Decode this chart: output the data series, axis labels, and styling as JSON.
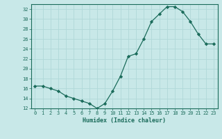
{
  "x": [
    0,
    1,
    2,
    3,
    4,
    5,
    6,
    7,
    8,
    9,
    10,
    11,
    12,
    13,
    14,
    15,
    16,
    17,
    18,
    19,
    20,
    21,
    22,
    23
  ],
  "y": [
    16.5,
    16.5,
    16.0,
    15.5,
    14.5,
    14.0,
    13.5,
    13.0,
    12.0,
    13.0,
    15.5,
    18.5,
    22.5,
    23.0,
    26.0,
    29.5,
    31.0,
    32.5,
    32.5,
    31.5,
    29.5,
    27.0,
    25.0,
    25.0
  ],
  "ylim": [
    12,
    33
  ],
  "yticks": [
    12,
    14,
    16,
    18,
    20,
    22,
    24,
    26,
    28,
    30,
    32
  ],
  "xlabel": "Humidex (Indice chaleur)",
  "line_color": "#1a6b5a",
  "marker": "D",
  "marker_size": 2.2,
  "bg_color": "#c8e8e8",
  "grid_color": "#b0d8d8",
  "axis_color": "#1a6b5a",
  "tick_fontsize": 5.0,
  "xlabel_fontsize": 6.0
}
